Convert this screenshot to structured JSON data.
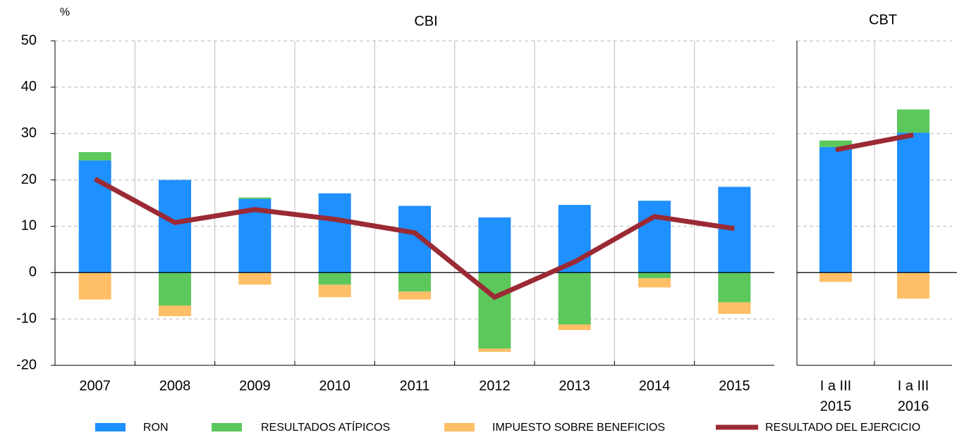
{
  "chart_data": [
    {
      "type": "bar",
      "stacked": true,
      "title": "CBI",
      "unit": "%",
      "categories": [
        "2007",
        "2008",
        "2009",
        "2010",
        "2011",
        "2012",
        "2013",
        "2014",
        "2015"
      ],
      "ylim": [
        -20,
        50
      ],
      "yticks": [
        -20,
        -10,
        0,
        10,
        20,
        30,
        40,
        50
      ],
      "grid": true,
      "legend": "bottom",
      "series": [
        {
          "name": "RON",
          "color": "#1e90ff",
          "values": [
            24.2,
            20.0,
            15.9,
            17.1,
            14.4,
            11.9,
            14.6,
            15.5,
            18.5
          ]
        },
        {
          "name": "RESULTADOS ATÍPICOS",
          "color": "#5cc85c",
          "values": [
            1.8,
            -7.1,
            0.3,
            -2.6,
            -4.1,
            -16.4,
            -11.2,
            -1.2,
            -6.4
          ]
        },
        {
          "name": "IMPUESTO SOBRE BENEFICIOS",
          "color": "#ffbf66",
          "values": [
            -5.8,
            -2.3,
            -2.6,
            -2.7,
            -1.7,
            -0.7,
            -1.2,
            -2.0,
            -2.5
          ]
        },
        {
          "name": "RESULTADO DEL EJERCICIO",
          "color": "#9b2a35",
          "type": "line",
          "values": [
            20.2,
            10.8,
            13.6,
            11.5,
            8.6,
            -5.3,
            2.3,
            12.1,
            9.5
          ]
        }
      ]
    },
    {
      "type": "bar",
      "stacked": true,
      "title": "CBT",
      "categories": [
        [
          "I a III",
          "2015"
        ],
        [
          "I a III",
          "2016"
        ]
      ],
      "series": [
        {
          "name": "RON",
          "color": "#1e90ff",
          "values": [
            27.1,
            30.2
          ]
        },
        {
          "name": "RESULTADOS ATÍPICOS",
          "color": "#5cc85c",
          "values": [
            1.4,
            5.0
          ]
        },
        {
          "name": "IMPUESTO SOBRE BENEFICIOS",
          "color": "#ffbf66",
          "values": [
            -2.0,
            -5.6
          ]
        },
        {
          "name": "RESULTADO DEL EJERCICIO",
          "color": "#9b2a35",
          "type": "line",
          "values": [
            26.5,
            29.7
          ]
        }
      ]
    }
  ]
}
